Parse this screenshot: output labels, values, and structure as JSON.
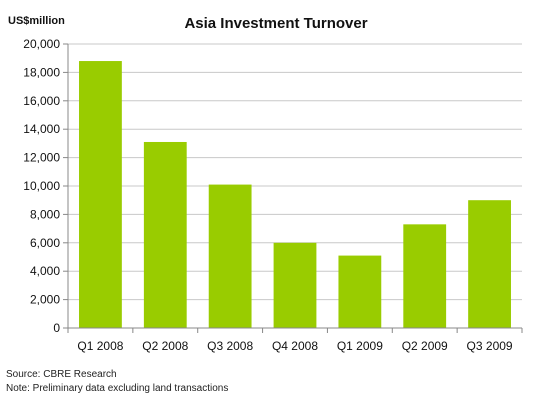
{
  "chart_data": {
    "type": "bar",
    "title": "Asia Investment Turnover",
    "ylabel": "US$million",
    "xlabel": "",
    "categories": [
      "Q1 2008",
      "Q2 2008",
      "Q3 2008",
      "Q4 2008",
      "Q1 2009",
      "Q2 2009",
      "Q3 2009"
    ],
    "values": [
      18800,
      13100,
      10100,
      6000,
      5100,
      7300,
      9000
    ],
    "ylim": [
      0,
      20000
    ],
    "yticks": [
      0,
      2000,
      4000,
      6000,
      8000,
      10000,
      12000,
      14000,
      16000,
      18000,
      20000
    ],
    "ytick_labels": [
      "0",
      "2,000",
      "4,000",
      "6,000",
      "8,000",
      "10,000",
      "12,000",
      "14,000",
      "16,000",
      "18,000",
      "20,000"
    ],
    "grid": true,
    "legend": "none",
    "bar_color": "#99cc00",
    "grid_color": "#c8c8c8",
    "axis_color": "#888888"
  },
  "footnotes": {
    "source": "Source: CBRE Research",
    "note": "Note: Preliminary data excluding land transactions"
  }
}
